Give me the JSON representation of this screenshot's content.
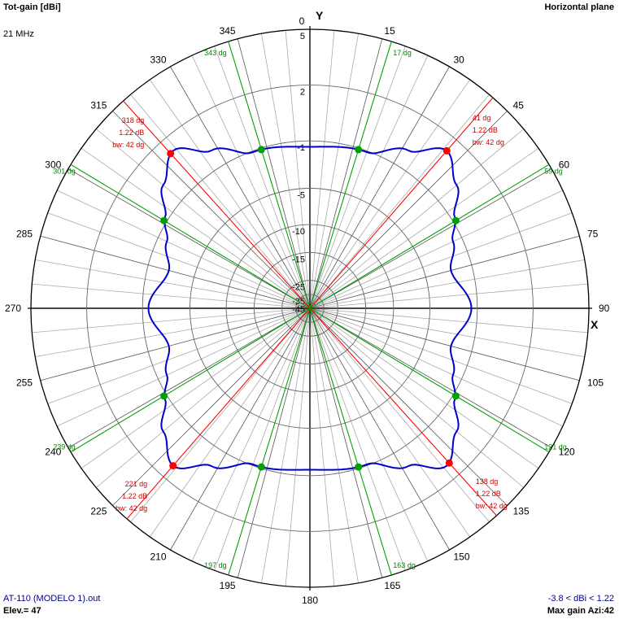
{
  "header": {
    "left_title": "Tot-gain [dBi]",
    "frequency": "21 MHz",
    "right_title": "Horizontal plane"
  },
  "footer": {
    "file_name": "AT-110 (MODELO 1).out",
    "elevation": "Elev.= 47",
    "gain_range": "-3.8 < dBi < 1.22",
    "max_gain": "Max gain Azi:42"
  },
  "colors": {
    "pattern": "#0000cc",
    "max_marker": "#ff0000",
    "beamwidth_marker": "#00a000",
    "grid": "#000000",
    "max_text": "#cc0000",
    "bw_text": "#008800"
  },
  "chart_data": {
    "type": "polar-line",
    "center_labels": {
      "y_axis": "Y",
      "x_axis": "X"
    },
    "azimuth_tick_labels": [
      "0",
      "15",
      "30",
      "45",
      "60",
      "75",
      "90",
      "105",
      "120",
      "135",
      "150",
      "165",
      "180",
      "195",
      "210",
      "225",
      "240",
      "255",
      "270",
      "285",
      "300",
      "315",
      "330",
      "345"
    ],
    "radial_tick_labels": [
      "5",
      "2",
      "-1",
      "-5",
      "-10",
      "-15",
      "-25",
      "-35",
      "-45"
    ],
    "radial_scale": {
      "dbi": [
        5,
        2,
        -1,
        -5,
        -10,
        -15,
        -25,
        -35,
        -45
      ],
      "fraction": [
        1.0,
        0.8,
        0.6,
        0.43,
        0.3,
        0.2,
        0.1,
        0.05,
        0.02
      ]
    },
    "series": [
      {
        "azimuth_deg": [
          0,
          20,
          32,
          41,
          50,
          58,
          65,
          75,
          90,
          105,
          115,
          122,
          130,
          139,
          148,
          160,
          180,
          200,
          212,
          221,
          230,
          238,
          245,
          255,
          270,
          285,
          295,
          302,
          310,
          319,
          328,
          340,
          360
        ],
        "gain_dbi": [
          -1.5,
          -1.1,
          0.0,
          1.22,
          0.3,
          -0.8,
          -1.8,
          -2.8,
          -1.5,
          -2.8,
          -1.8,
          -0.8,
          0.3,
          1.22,
          0.0,
          -1.1,
          -1.5,
          -1.1,
          0.0,
          1.22,
          0.3,
          -0.8,
          -1.8,
          -2.8,
          -1.5,
          -2.8,
          -1.8,
          -0.8,
          0.3,
          1.22,
          0.0,
          -1.1,
          -1.5
        ]
      }
    ],
    "max_gain_markers": [
      {
        "azimuth": 41,
        "label_angle": "41 dg",
        "label_gain": "1.22 dB",
        "label_bw": "bw: 42 dg"
      },
      {
        "azimuth": 138,
        "label_angle": "138 dg",
        "label_gain": "1.22 dB",
        "label_bw": "bw: 42 dg"
      },
      {
        "azimuth": 221,
        "label_angle": "221 dg",
        "label_gain": "1.22 dB",
        "label_bw": "bw: 42 dg"
      },
      {
        "azimuth": 318,
        "label_angle": "318 dg",
        "label_gain": "1.22 dB",
        "label_bw": "bw: 42 dg"
      }
    ],
    "beamwidth_markers": [
      {
        "azimuth": 17,
        "label": "17 dg"
      },
      {
        "azimuth": 59,
        "label": "59 dg"
      },
      {
        "azimuth": 121,
        "label": "121 dg"
      },
      {
        "azimuth": 163,
        "label": "163 dg"
      },
      {
        "azimuth": 197,
        "label": "197 dg"
      },
      {
        "azimuth": 239,
        "label": "239 dg"
      },
      {
        "azimuth": 301,
        "label": "301 dg"
      },
      {
        "azimuth": 343,
        "label": "343 dg"
      }
    ]
  }
}
